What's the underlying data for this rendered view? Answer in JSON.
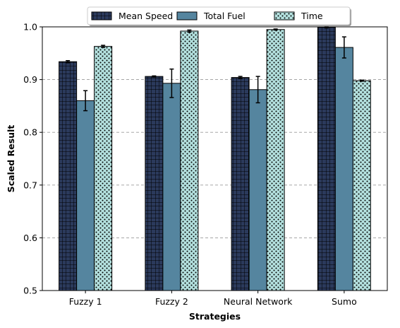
{
  "chart_data": {
    "type": "bar",
    "categories": [
      "Fuzzy 1",
      "Fuzzy 2",
      "Neural Network",
      "Sumo"
    ],
    "series": [
      {
        "name": "Mean Speed",
        "values": [
          0.934,
          0.906,
          0.904,
          0.999
        ],
        "errors": [
          0.002,
          0.001,
          0.002,
          0.001
        ],
        "color": "#2b3a5c",
        "hatch": "grid"
      },
      {
        "name": "Total Fuel",
        "values": [
          0.86,
          0.893,
          0.881,
          0.961
        ],
        "errors": [
          0.019,
          0.027,
          0.025,
          0.02
        ],
        "color": "#55859f",
        "hatch": "none"
      },
      {
        "name": "Time",
        "values": [
          0.963,
          0.992,
          0.995,
          0.898
        ],
        "errors": [
          0.002,
          0.002,
          0.001,
          0.001
        ],
        "color": "#b3e0de",
        "hatch": "dots"
      }
    ],
    "title": "",
    "xlabel": "Strategies",
    "ylabel": "Scaled Result",
    "ylim": [
      0.5,
      1.0
    ],
    "yticks": [
      0.5,
      0.6,
      0.7,
      0.8,
      0.9,
      1.0
    ],
    "grid": "y-dashed",
    "legend_position": "top-center-outside"
  }
}
